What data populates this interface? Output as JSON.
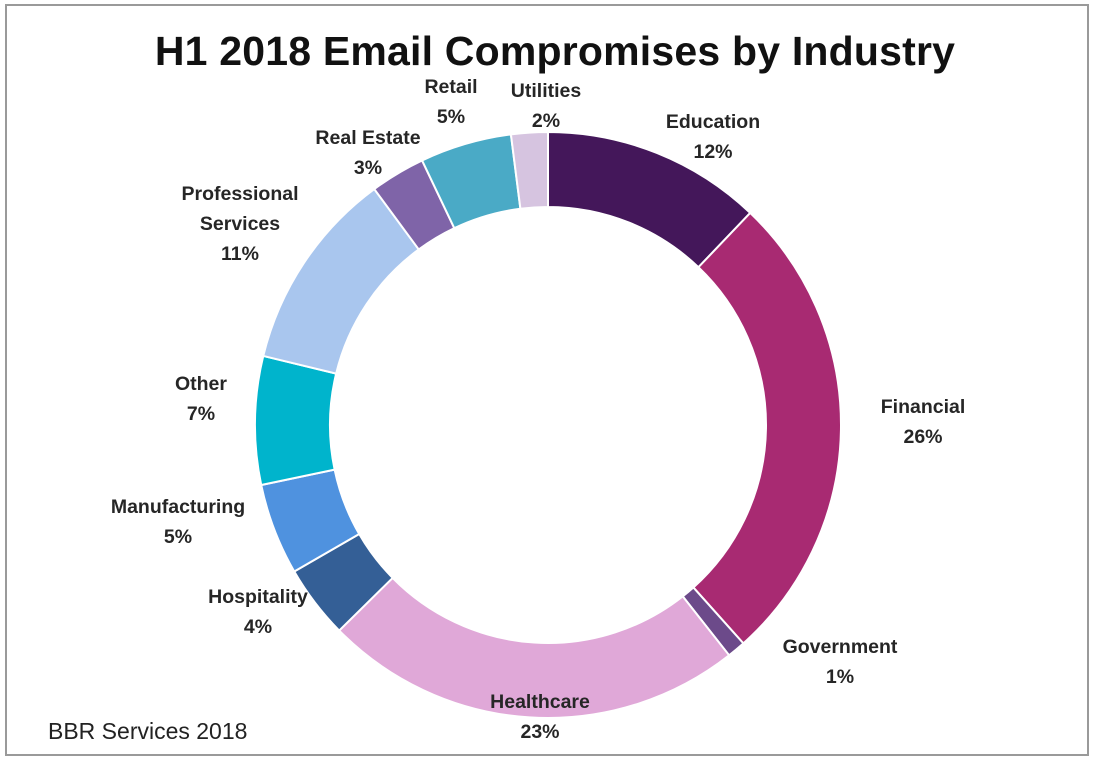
{
  "chart_data": {
    "type": "pie",
    "donut": true,
    "title": "H1 2018 Email Compromises by Industry",
    "source": "BBR Services 2018",
    "unit": "%",
    "slices": [
      {
        "name": "Education",
        "value": 12,
        "label_lines": [
          "Education"
        ],
        "color": "#44175a"
      },
      {
        "name": "Financial",
        "value": 26,
        "label_lines": [
          "Financial"
        ],
        "color": "#a82a72"
      },
      {
        "name": "Government",
        "value": 1,
        "label_lines": [
          "Government"
        ],
        "color": "#6c4a8a"
      },
      {
        "name": "Healthcare",
        "value": 23,
        "label_lines": [
          "Healthcare"
        ],
        "color": "#e0a8d8"
      },
      {
        "name": "Hospitality",
        "value": 4,
        "label_lines": [
          "Hospitality"
        ],
        "color": "#345f96"
      },
      {
        "name": "Manufacturing",
        "value": 5,
        "label_lines": [
          "Manufacturing"
        ],
        "color": "#4f92df"
      },
      {
        "name": "Other",
        "value": 7,
        "label_lines": [
          "Other"
        ],
        "color": "#00b4cc"
      },
      {
        "name": "Professional Services",
        "value": 11,
        "label_lines": [
          "Professional",
          "Services"
        ],
        "color": "#a9c6ee"
      },
      {
        "name": "Real Estate",
        "value": 3,
        "label_lines": [
          "Real Estate"
        ],
        "color": "#7f64a8"
      },
      {
        "name": "Retail",
        "value": 5,
        "label_lines": [
          "Retail"
        ],
        "color": "#4aaac6"
      },
      {
        "name": "Utilities",
        "value": 2,
        "label_lines": [
          "Utilities"
        ],
        "color": "#d6c4e0"
      }
    ]
  }
}
